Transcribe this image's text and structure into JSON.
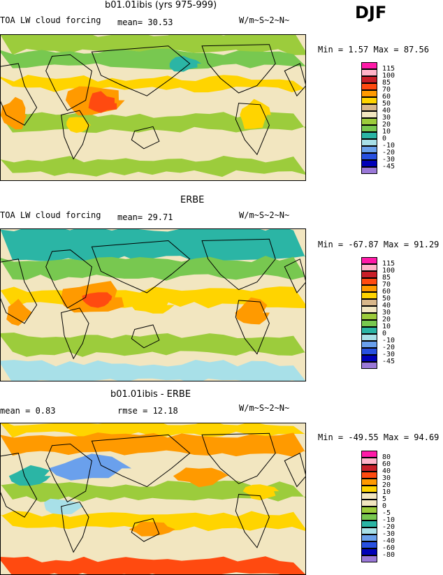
{
  "season": "DJF",
  "units": "W/m~S~2~N~",
  "variable": "TOA LW cloud forcing",
  "panels": [
    {
      "title": "b01.01ibis (yrs 975-999)",
      "left_label": "TOA LW cloud forcing",
      "stat1": "mean=  30.53",
      "stat2": "",
      "units": "W/m~S~2~N~",
      "minmax": "Min =   1.57 Max =  87.56",
      "levels": [
        "115",
        "100",
        "85",
        "70",
        "60",
        "50",
        "40",
        "30",
        "20",
        "10",
        "0",
        "-10",
        "-20",
        "-30",
        "-45"
      ],
      "colors": [
        "#ff1aa8",
        "#ffb3c8",
        "#c81e28",
        "#ff4a10",
        "#ff9a00",
        "#ffd400",
        "#d8b78a",
        "#f2e6c0",
        "#9ccc3c",
        "#78c850",
        "#2bb5a5",
        "#a8e0e8",
        "#6aa0ec",
        "#2850e0",
        "#0000b8",
        "#9a78d8"
      ]
    },
    {
      "title": "ERBE",
      "left_label": "TOA LW cloud forcing",
      "stat1": "mean=  29.71",
      "stat2": "",
      "units": "W/m~S~2~N~",
      "minmax": "Min = -67.87 Max =  91.29",
      "levels": [
        "115",
        "100",
        "85",
        "70",
        "60",
        "50",
        "40",
        "30",
        "20",
        "10",
        "0",
        "-10",
        "-20",
        "-30",
        "-45"
      ],
      "colors": [
        "#ff1aa8",
        "#ffb3c8",
        "#c81e28",
        "#ff4a10",
        "#ff9a00",
        "#ffd400",
        "#d8b78a",
        "#f2e6c0",
        "#9ccc3c",
        "#78c850",
        "#2bb5a5",
        "#a8e0e8",
        "#6aa0ec",
        "#2850e0",
        "#0000b8",
        "#9a78d8"
      ]
    },
    {
      "title": "b01.01ibis - ERBE",
      "left_label": "mean =   0.83",
      "stat1": "rmse =  12.18",
      "stat2": "",
      "units": "W/m~S~2~N~",
      "minmax": "Min = -49.55 Max =  94.69",
      "levels": [
        "80",
        "60",
        "40",
        "30",
        "20",
        "10",
        "5",
        "0",
        "-5",
        "-10",
        "-20",
        "-30",
        "-40",
        "-60",
        "-80"
      ],
      "colors": [
        "#ff1aa8",
        "#ffb3c8",
        "#c81e28",
        "#ff4a10",
        "#ff9a00",
        "#ffd400",
        "#f2e6c0",
        "#f2e6c0",
        "#9ccc3c",
        "#78c850",
        "#2bb5a5",
        "#a8e0e8",
        "#6aa0ec",
        "#2850e0",
        "#0000b8",
        "#9a78d8"
      ]
    }
  ],
  "chart_data": [
    {
      "type": "heatmap",
      "title": "b01.01ibis (yrs 975-999)",
      "subtitle": "TOA LW cloud forcing",
      "units": "W/m~S~2~N~",
      "mean": 30.53,
      "min": 1.57,
      "max": 87.56,
      "contour_levels": [
        -45,
        -30,
        -20,
        -10,
        0,
        10,
        20,
        30,
        40,
        50,
        60,
        70,
        85,
        100,
        115
      ]
    },
    {
      "type": "heatmap",
      "title": "ERBE",
      "subtitle": "TOA LW cloud forcing",
      "units": "W/m~S~2~N~",
      "mean": 29.71,
      "min": -67.87,
      "max": 91.29,
      "contour_levels": [
        -45,
        -30,
        -20,
        -10,
        0,
        10,
        20,
        30,
        40,
        50,
        60,
        70,
        85,
        100,
        115
      ]
    },
    {
      "type": "heatmap",
      "title": "b01.01ibis - ERBE",
      "units": "W/m~S~2~N~",
      "mean": 0.83,
      "rmse": 12.18,
      "min": -49.55,
      "max": 94.69,
      "contour_levels": [
        -80,
        -60,
        -40,
        -30,
        -20,
        -10,
        -5,
        0,
        5,
        10,
        20,
        30,
        40,
        60,
        80
      ]
    }
  ]
}
